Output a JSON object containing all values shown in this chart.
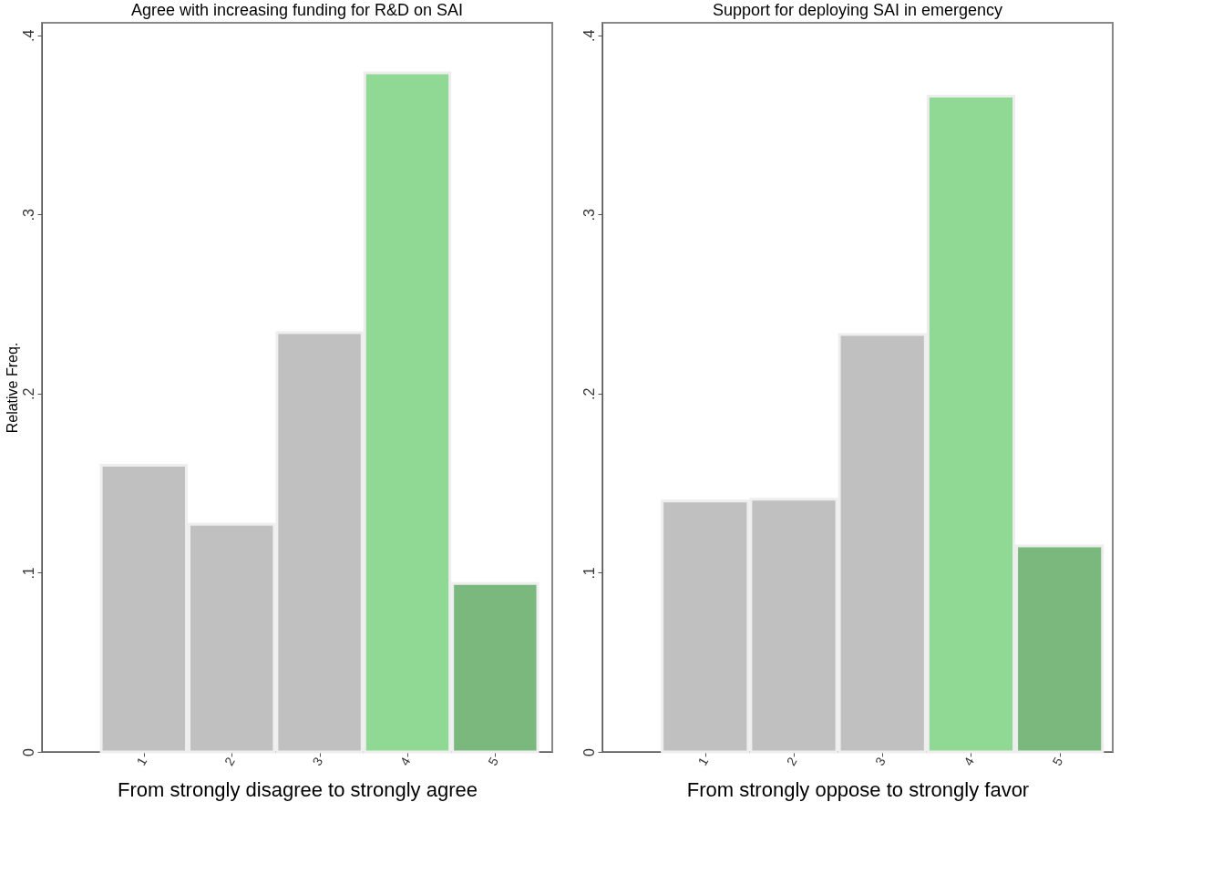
{
  "chart_data": [
    {
      "type": "bar",
      "title": "Agree with increasing funding for R&D on SAI",
      "xlabel": "From strongly disagree to strongly agree",
      "ylabel": "Relative Freq.",
      "x": [
        1,
        2,
        3,
        4,
        5
      ],
      "values": [
        0.16,
        0.127,
        0.234,
        0.379,
        0.094
      ],
      "colors": [
        "#c0c0c0",
        "#c0c0c0",
        "#c0c0c0",
        "#90d995",
        "#7ab87e"
      ],
      "xlim": [
        -0.16,
        5.65
      ],
      "xticks": [
        1,
        2,
        3,
        4,
        5
      ],
      "ylim": [
        0,
        0.407
      ],
      "yticks": [
        0,
        {
          "value": 0.1,
          "label": ".1"
        },
        {
          "value": 0.2,
          "label": ".2"
        },
        {
          "value": 0.3,
          "label": ".3"
        },
        {
          "value": 0.4,
          "label": ".4"
        }
      ],
      "grid": false,
      "legend": false
    },
    {
      "type": "bar",
      "title": "Support for deploying SAI in emergency",
      "xlabel": "From strongly oppose to strongly favor",
      "x": [
        1,
        2,
        3,
        4,
        5
      ],
      "values": [
        0.14,
        0.141,
        0.233,
        0.366,
        0.115
      ],
      "colors": [
        "#c0c0c0",
        "#c0c0c0",
        "#c0c0c0",
        "#90d995",
        "#7ab87e"
      ],
      "xlim": [
        -0.16,
        5.6
      ],
      "xticks": [
        1,
        2,
        3,
        4,
        5
      ],
      "ylim": [
        0,
        0.407
      ],
      "yticks": [
        0,
        {
          "value": 0.1,
          "label": ".1"
        },
        {
          "value": 0.2,
          "label": ".2"
        },
        {
          "value": 0.3,
          "label": ".3"
        },
        {
          "value": 0.4,
          "label": ".4"
        }
      ],
      "grid": false,
      "legend": false
    }
  ]
}
